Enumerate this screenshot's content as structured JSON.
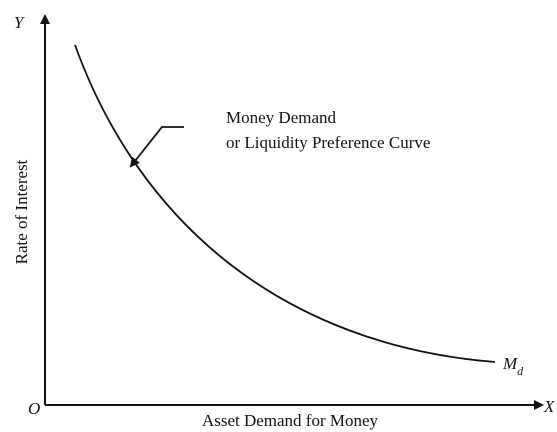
{
  "axes": {
    "y_symbol": "Y",
    "x_symbol": "X",
    "origin": "O",
    "y_label": "Rate of Interest",
    "x_label": "Asset Demand for Money"
  },
  "annotation": {
    "lines": [
      "Money Demand",
      "or Liquidity Preference Curve"
    ]
  },
  "curve_label": {
    "main": "M",
    "subscript": "d"
  }
}
